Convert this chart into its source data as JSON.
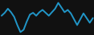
{
  "x": [
    0,
    1,
    2,
    3,
    4,
    5,
    6,
    7,
    8,
    9,
    10,
    11,
    12,
    13,
    14,
    15,
    16,
    17,
    18,
    19,
    20,
    21,
    22,
    23,
    24,
    25,
    26,
    27,
    28,
    29
  ],
  "y": [
    -0.2,
    0.3,
    1.0,
    0.4,
    -0.4,
    -1.8,
    -3.0,
    -2.6,
    -1.2,
    0.0,
    0.3,
    -0.2,
    0.4,
    0.8,
    0.3,
    -0.2,
    0.4,
    1.0,
    2.0,
    1.2,
    0.4,
    0.8,
    0.2,
    -0.8,
    -1.8,
    -0.8,
    0.2,
    -0.6,
    -1.4,
    -0.6
  ],
  "line_color": "#2196c8",
  "linewidth": 1.4,
  "background_color": "#111111",
  "ylim": [
    -3.5,
    2.5
  ]
}
